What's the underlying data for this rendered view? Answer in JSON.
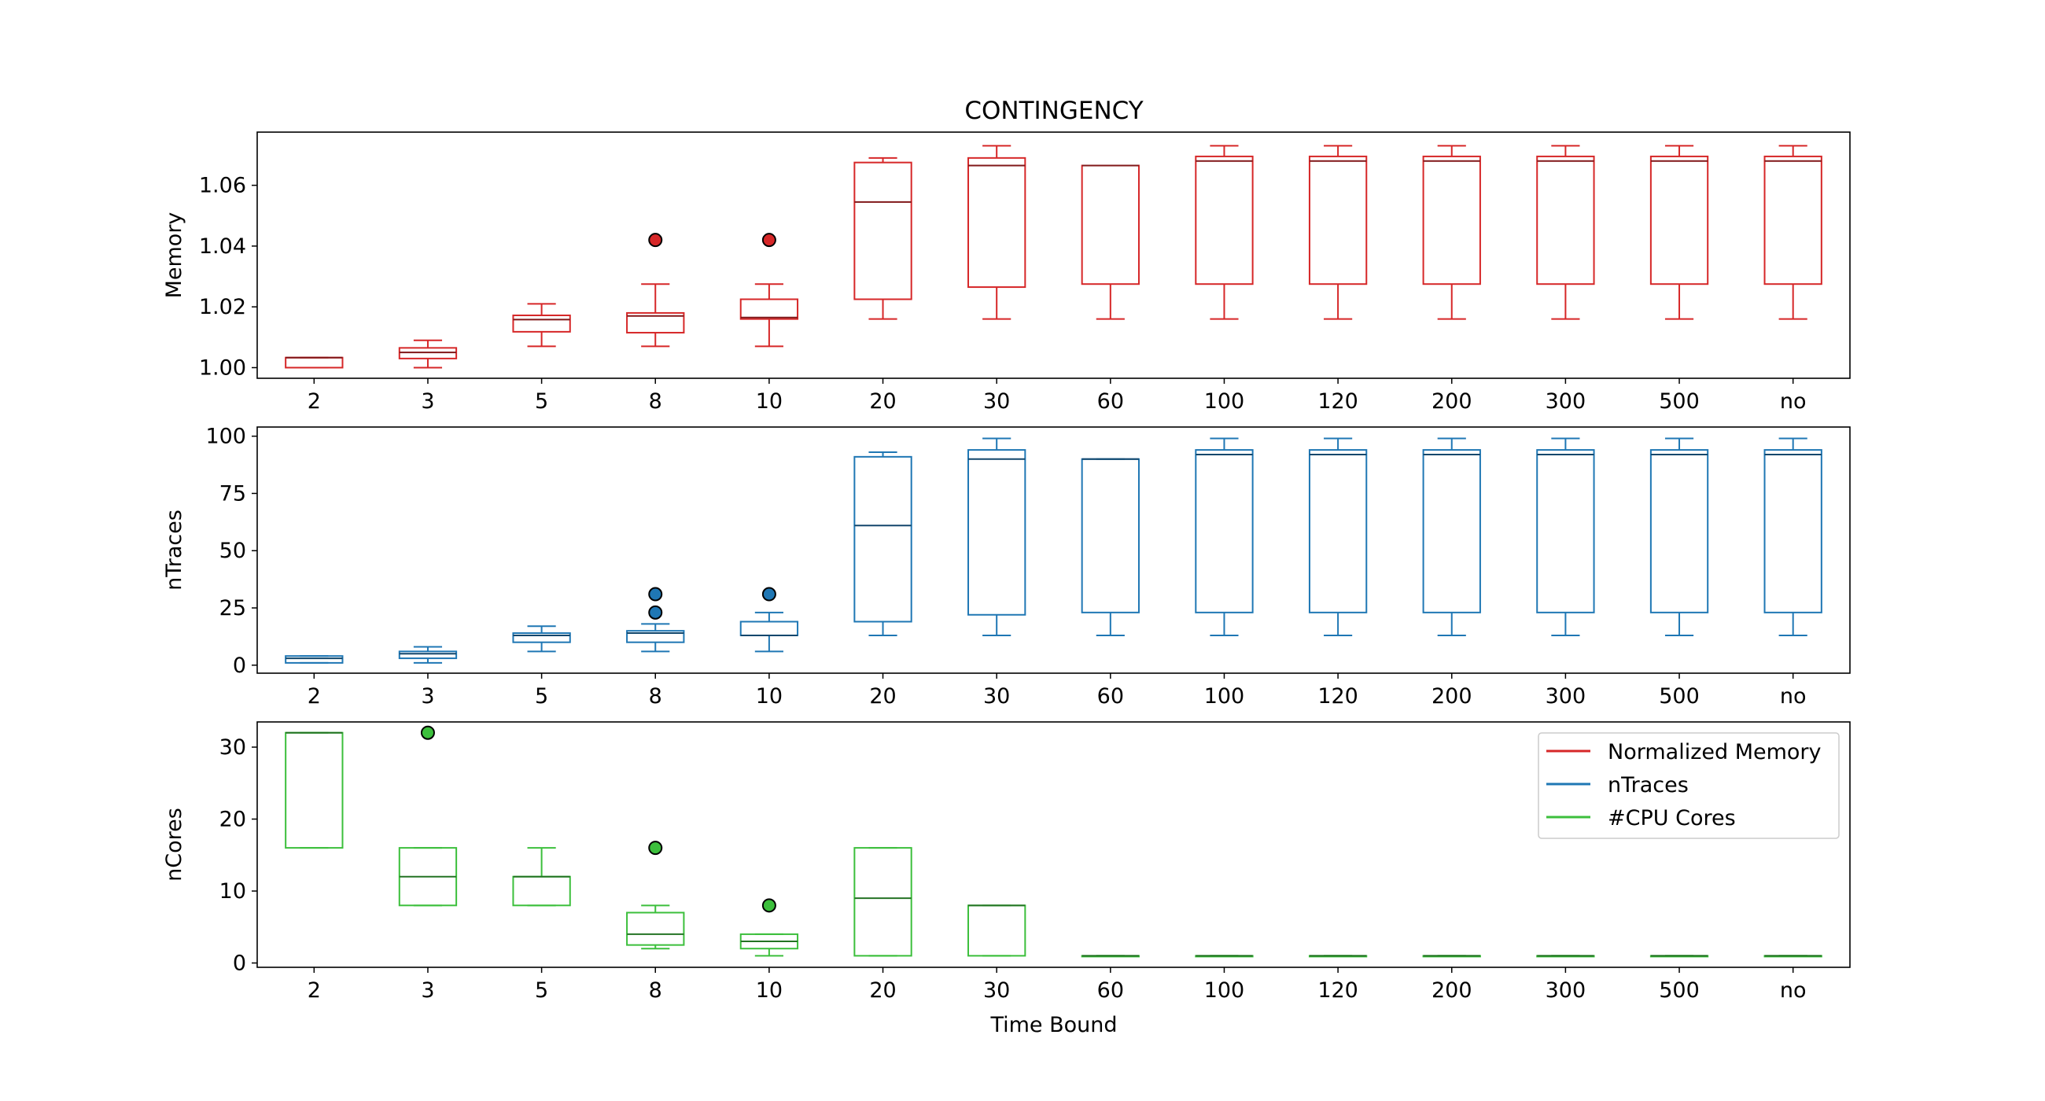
{
  "title": "CONTINGENCY",
  "xlabel": "Time Bound",
  "colors": {
    "memory": "#d62728",
    "traces": "#1f77b4",
    "cores": "#3cbf3c"
  },
  "legend": {
    "placement": "upper right",
    "entries": [
      "Normalized Memory",
      "nTraces",
      "#CPU Cores"
    ]
  },
  "chart_data": [
    {
      "type": "box",
      "ylabel": "Memory",
      "color_key": "memory",
      "categories": [
        "2",
        "3",
        "5",
        "8",
        "10",
        "20",
        "30",
        "60",
        "100",
        "120",
        "200",
        "300",
        "500",
        "no"
      ],
      "ylim": [
        0.9965,
        1.0775
      ],
      "yticks": [
        1.0,
        1.02,
        1.04,
        1.06
      ],
      "ytick_labels": [
        "1.00",
        "1.02",
        "1.04",
        "1.06"
      ],
      "boxes": [
        {
          "wlo": 1.0,
          "q1": 1.0,
          "med": 1.0033,
          "q3": 1.0033,
          "whi": 1.0033,
          "fliers": []
        },
        {
          "wlo": 1.0,
          "q1": 1.003,
          "med": 1.005,
          "q3": 1.0065,
          "whi": 1.009,
          "fliers": []
        },
        {
          "wlo": 1.007,
          "q1": 1.0118,
          "med": 1.0158,
          "q3": 1.0172,
          "whi": 1.021,
          "fliers": []
        },
        {
          "wlo": 1.007,
          "q1": 1.0115,
          "med": 1.017,
          "q3": 1.018,
          "whi": 1.0275,
          "fliers": [
            1.042
          ]
        },
        {
          "wlo": 1.007,
          "q1": 1.016,
          "med": 1.0165,
          "q3": 1.0225,
          "whi": 1.0275,
          "fliers": [
            1.042
          ]
        },
        {
          "wlo": 1.016,
          "q1": 1.0225,
          "med": 1.0545,
          "q3": 1.0675,
          "whi": 1.069,
          "fliers": []
        },
        {
          "wlo": 1.016,
          "q1": 1.0265,
          "med": 1.0665,
          "q3": 1.069,
          "whi": 1.073,
          "fliers": []
        },
        {
          "wlo": 1.016,
          "q1": 1.0275,
          "med": 1.0665,
          "q3": 1.0665,
          "whi": 1.0665,
          "fliers": []
        },
        {
          "wlo": 1.016,
          "q1": 1.0275,
          "med": 1.068,
          "q3": 1.0695,
          "whi": 1.073,
          "fliers": []
        },
        {
          "wlo": 1.016,
          "q1": 1.0275,
          "med": 1.068,
          "q3": 1.0695,
          "whi": 1.073,
          "fliers": []
        },
        {
          "wlo": 1.016,
          "q1": 1.0275,
          "med": 1.068,
          "q3": 1.0695,
          "whi": 1.073,
          "fliers": []
        },
        {
          "wlo": 1.016,
          "q1": 1.0275,
          "med": 1.068,
          "q3": 1.0695,
          "whi": 1.073,
          "fliers": []
        },
        {
          "wlo": 1.016,
          "q1": 1.0275,
          "med": 1.068,
          "q3": 1.0695,
          "whi": 1.073,
          "fliers": []
        },
        {
          "wlo": 1.016,
          "q1": 1.0275,
          "med": 1.068,
          "q3": 1.0695,
          "whi": 1.073,
          "fliers": []
        }
      ]
    },
    {
      "type": "box",
      "ylabel": "nTraces",
      "color_key": "traces",
      "categories": [
        "2",
        "3",
        "5",
        "8",
        "10",
        "20",
        "30",
        "60",
        "100",
        "120",
        "200",
        "300",
        "500",
        "no"
      ],
      "ylim": [
        -3.5,
        104
      ],
      "yticks": [
        0,
        25,
        50,
        75,
        100
      ],
      "ytick_labels": [
        "0",
        "25",
        "50",
        "75",
        "100"
      ],
      "boxes": [
        {
          "wlo": 1,
          "q1": 1,
          "med": 3,
          "q3": 4,
          "whi": 4,
          "fliers": []
        },
        {
          "wlo": 1,
          "q1": 3,
          "med": 5,
          "q3": 6,
          "whi": 8,
          "fliers": []
        },
        {
          "wlo": 6,
          "q1": 10,
          "med": 13,
          "q3": 14,
          "whi": 17,
          "fliers": []
        },
        {
          "wlo": 6,
          "q1": 10,
          "med": 14,
          "q3": 15,
          "whi": 18,
          "fliers": [
            23,
            31
          ]
        },
        {
          "wlo": 6,
          "q1": 13,
          "med": 13,
          "q3": 19,
          "whi": 23,
          "fliers": [
            31
          ]
        },
        {
          "wlo": 13,
          "q1": 19,
          "med": 61,
          "q3": 91,
          "whi": 93,
          "fliers": []
        },
        {
          "wlo": 13,
          "q1": 22,
          "med": 90,
          "q3": 94,
          "whi": 99,
          "fliers": []
        },
        {
          "wlo": 13,
          "q1": 23,
          "med": 90,
          "q3": 90,
          "whi": 90,
          "fliers": []
        },
        {
          "wlo": 13,
          "q1": 23,
          "med": 92,
          "q3": 94,
          "whi": 99,
          "fliers": []
        },
        {
          "wlo": 13,
          "q1": 23,
          "med": 92,
          "q3": 94,
          "whi": 99,
          "fliers": []
        },
        {
          "wlo": 13,
          "q1": 23,
          "med": 92,
          "q3": 94,
          "whi": 99,
          "fliers": []
        },
        {
          "wlo": 13,
          "q1": 23,
          "med": 92,
          "q3": 94,
          "whi": 99,
          "fliers": []
        },
        {
          "wlo": 13,
          "q1": 23,
          "med": 92,
          "q3": 94,
          "whi": 99,
          "fliers": []
        },
        {
          "wlo": 13,
          "q1": 23,
          "med": 92,
          "q3": 94,
          "whi": 99,
          "fliers": []
        }
      ]
    },
    {
      "type": "box",
      "ylabel": "nCores",
      "color_key": "cores",
      "categories": [
        "2",
        "3",
        "5",
        "8",
        "10",
        "20",
        "30",
        "60",
        "100",
        "120",
        "200",
        "300",
        "500",
        "no"
      ],
      "ylim": [
        -0.6,
        33.5
      ],
      "yticks": [
        0,
        10,
        20,
        30
      ],
      "ytick_labels": [
        "0",
        "10",
        "20",
        "30"
      ],
      "boxes": [
        {
          "wlo": 16,
          "q1": 16,
          "med": 32,
          "q3": 32,
          "whi": 32,
          "fliers": []
        },
        {
          "wlo": 8,
          "q1": 8,
          "med": 12,
          "q3": 16,
          "whi": 16,
          "fliers": [
            32
          ]
        },
        {
          "wlo": 8,
          "q1": 8,
          "med": 12,
          "q3": 12,
          "whi": 16,
          "fliers": []
        },
        {
          "wlo": 2,
          "q1": 2.5,
          "med": 4,
          "q3": 7,
          "whi": 8,
          "fliers": [
            16
          ]
        },
        {
          "wlo": 1,
          "q1": 2,
          "med": 3,
          "q3": 4,
          "whi": 4,
          "fliers": [
            8
          ]
        },
        {
          "wlo": 1,
          "q1": 1,
          "med": 9,
          "q3": 16,
          "whi": 16,
          "fliers": []
        },
        {
          "wlo": 1,
          "q1": 1,
          "med": 8,
          "q3": 8,
          "whi": 8,
          "fliers": []
        },
        {
          "wlo": 1,
          "q1": 1,
          "med": 1,
          "q3": 1,
          "whi": 1,
          "fliers": []
        },
        {
          "wlo": 1,
          "q1": 1,
          "med": 1,
          "q3": 1,
          "whi": 1,
          "fliers": []
        },
        {
          "wlo": 1,
          "q1": 1,
          "med": 1,
          "q3": 1,
          "whi": 1,
          "fliers": []
        },
        {
          "wlo": 1,
          "q1": 1,
          "med": 1,
          "q3": 1,
          "whi": 1,
          "fliers": []
        },
        {
          "wlo": 1,
          "q1": 1,
          "med": 1,
          "q3": 1,
          "whi": 1,
          "fliers": []
        },
        {
          "wlo": 1,
          "q1": 1,
          "med": 1,
          "q3": 1,
          "whi": 1,
          "fliers": []
        },
        {
          "wlo": 1,
          "q1": 1,
          "med": 1,
          "q3": 1,
          "whi": 1,
          "fliers": []
        }
      ]
    }
  ]
}
